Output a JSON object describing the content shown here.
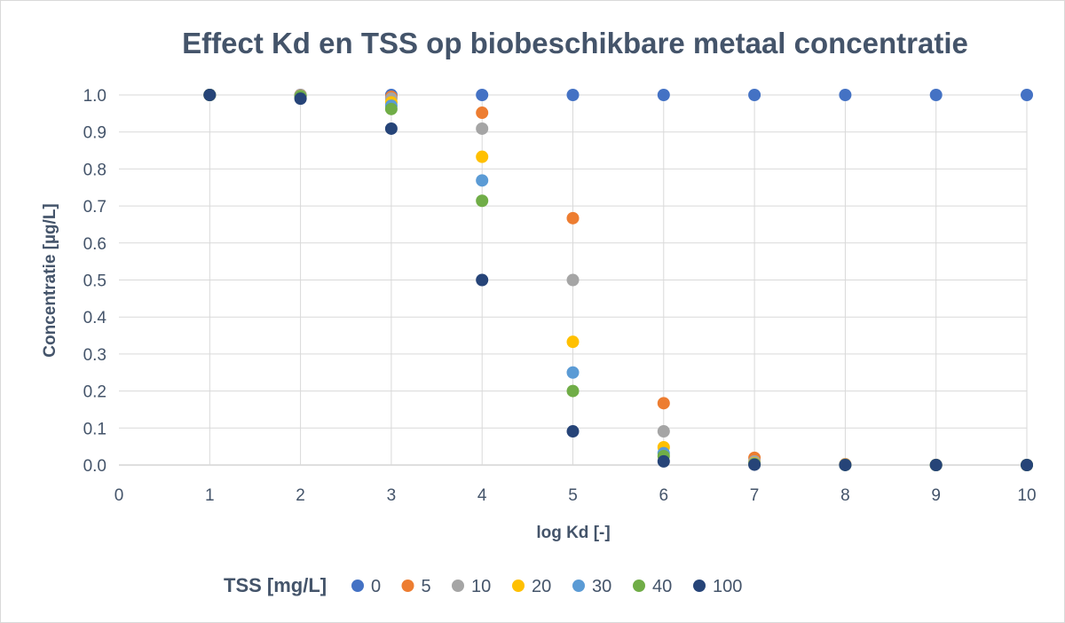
{
  "chart_data": {
    "type": "scatter",
    "title": "Effect Kd en TSS op biobeschikbare metaal concentratie",
    "xlabel": "log Kd [-]",
    "ylabel": "Concentratie [µg/L]",
    "xlim": [
      0,
      10
    ],
    "ylim": [
      0,
      1
    ],
    "x_ticks": [
      "0",
      "1",
      "2",
      "3",
      "4",
      "5",
      "6",
      "7",
      "8",
      "9",
      "10"
    ],
    "y_ticks": [
      "0.0",
      "0.1",
      "0.2",
      "0.3",
      "0.4",
      "0.5",
      "0.6",
      "0.7",
      "0.8",
      "0.9",
      "1.0"
    ],
    "grid": true,
    "legend_title": "TSS [mg/L]",
    "legend_position": "bottom",
    "series": [
      {
        "name": "0",
        "color": "#4472c4",
        "points": [
          [
            1,
            1.0
          ],
          [
            2,
            1.0
          ],
          [
            3,
            1.0
          ],
          [
            4,
            1.0
          ],
          [
            5,
            1.0
          ],
          [
            6,
            1.0
          ],
          [
            7,
            1.0
          ],
          [
            8,
            1.0
          ],
          [
            9,
            1.0
          ],
          [
            10,
            1.0
          ]
        ]
      },
      {
        "name": "5",
        "color": "#ed7d31",
        "points": [
          [
            1,
            1.0
          ],
          [
            2,
            0.9995
          ],
          [
            3,
            0.995
          ],
          [
            4,
            0.952
          ],
          [
            5,
            0.667
          ],
          [
            6,
            0.167
          ],
          [
            7,
            0.0196
          ],
          [
            8,
            0.002
          ],
          [
            9,
            0.0002
          ],
          [
            10,
            0.0
          ]
        ]
      },
      {
        "name": "10",
        "color": "#a5a5a5",
        "points": [
          [
            1,
            1.0
          ],
          [
            2,
            0.999
          ],
          [
            3,
            0.99
          ],
          [
            4,
            0.909
          ],
          [
            5,
            0.5
          ],
          [
            6,
            0.091
          ],
          [
            7,
            0.0099
          ],
          [
            8,
            0.001
          ],
          [
            9,
            0.0001
          ],
          [
            10,
            0.0
          ]
        ]
      },
      {
        "name": "20",
        "color": "#ffc000",
        "points": [
          [
            1,
            1.0
          ],
          [
            2,
            0.998
          ],
          [
            3,
            0.98
          ],
          [
            4,
            0.833
          ],
          [
            5,
            0.333
          ],
          [
            6,
            0.048
          ],
          [
            7,
            0.005
          ],
          [
            8,
            0.0005
          ],
          [
            9,
            0.0
          ],
          [
            10,
            0.0
          ]
        ]
      },
      {
        "name": "30",
        "color": "#5b9bd5",
        "points": [
          [
            1,
            1.0
          ],
          [
            2,
            0.997
          ],
          [
            3,
            0.971
          ],
          [
            4,
            0.769
          ],
          [
            5,
            0.25
          ],
          [
            6,
            0.032
          ],
          [
            7,
            0.0033
          ],
          [
            8,
            0.0003
          ],
          [
            9,
            0.0
          ],
          [
            10,
            0.0
          ]
        ]
      },
      {
        "name": "40",
        "color": "#70ad47",
        "points": [
          [
            1,
            1.0
          ],
          [
            2,
            0.996
          ],
          [
            3,
            0.962
          ],
          [
            4,
            0.714
          ],
          [
            5,
            0.2
          ],
          [
            6,
            0.024
          ],
          [
            7,
            0.0025
          ],
          [
            8,
            0.0002
          ],
          [
            9,
            0.0
          ],
          [
            10,
            0.0
          ]
        ]
      },
      {
        "name": "100",
        "color": "#264478",
        "points": [
          [
            1,
            1.0
          ],
          [
            2,
            0.99
          ],
          [
            3,
            0.909
          ],
          [
            4,
            0.5
          ],
          [
            5,
            0.091
          ],
          [
            6,
            0.0099
          ],
          [
            7,
            0.001
          ],
          [
            8,
            0.0001
          ],
          [
            9,
            0.0
          ],
          [
            10,
            0.0
          ]
        ]
      }
    ]
  }
}
